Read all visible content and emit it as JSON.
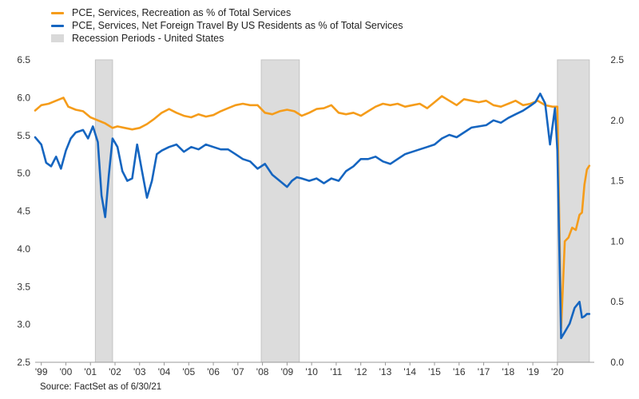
{
  "legend": {
    "items": [
      {
        "label": "PCE, Services, Recreation as % of Total Services",
        "kind": "line",
        "color": "#f59c1a"
      },
      {
        "label": "PCE, Services, Net Foreign Travel By US Residents as % of Total Services",
        "kind": "line",
        "color": "#1565c0"
      },
      {
        "label": "Recession Periods - United States",
        "kind": "box",
        "color": "#d9d9d9"
      }
    ]
  },
  "source": "Source: FactSet as of 6/30/21",
  "chart_data": {
    "type": "line",
    "x_range": [
      1998.75,
      2021.5
    ],
    "y_left": {
      "ylim": [
        2.5,
        6.5
      ],
      "ticks": [
        "2.5",
        "3.0",
        "3.5",
        "4.0",
        "4.5",
        "5.0",
        "5.5",
        "6.0",
        "6.5"
      ]
    },
    "y_right": {
      "ylim": [
        0.0,
        2.5
      ],
      "ticks": [
        "0.0",
        "0.5",
        "1.0",
        "1.5",
        "2.0",
        "2.5"
      ]
    },
    "x_ticks": [
      {
        "label": "'99",
        "x": 1999
      },
      {
        "label": "'00",
        "x": 2000
      },
      {
        "label": "'01",
        "x": 2001
      },
      {
        "label": "'02",
        "x": 2002
      },
      {
        "label": "'03",
        "x": 2003
      },
      {
        "label": "'04",
        "x": 2004
      },
      {
        "label": "'05",
        "x": 2005
      },
      {
        "label": "'06",
        "x": 2006
      },
      {
        "label": "'07",
        "x": 2007
      },
      {
        "label": "'08",
        "x": 2008
      },
      {
        "label": "'09",
        "x": 2009
      },
      {
        "label": "'10",
        "x": 2010
      },
      {
        "label": "'11",
        "x": 2011
      },
      {
        "label": "'12",
        "x": 2012
      },
      {
        "label": "'13",
        "x": 2013
      },
      {
        "label": "'14",
        "x": 2014
      },
      {
        "label": "'15",
        "x": 2015
      },
      {
        "label": "'16",
        "x": 2016
      },
      {
        "label": "'17",
        "x": 2017
      },
      {
        "label": "'18",
        "x": 2018
      },
      {
        "label": "'19",
        "x": 2019
      },
      {
        "label": "'20",
        "x": 2020
      }
    ],
    "recessions": [
      [
        2001.2,
        2001.9
      ],
      [
        2007.95,
        2009.5
      ],
      [
        2020.0,
        2021.3
      ]
    ],
    "series": [
      {
        "axis": "left",
        "color": "#f59c1a",
        "x": [
          1998.75,
          1999.0,
          1999.3,
          1999.6,
          1999.9,
          2000.1,
          2000.4,
          2000.7,
          2001.0,
          2001.3,
          2001.6,
          2001.9,
          2002.1,
          2002.4,
          2002.7,
          2003.0,
          2003.3,
          2003.6,
          2003.9,
          2004.2,
          2004.5,
          2004.8,
          2005.1,
          2005.4,
          2005.7,
          2006.0,
          2006.3,
          2006.6,
          2006.9,
          2007.2,
          2007.5,
          2007.8,
          2008.1,
          2008.4,
          2008.7,
          2009.0,
          2009.3,
          2009.6,
          2009.9,
          2010.2,
          2010.5,
          2010.8,
          2011.1,
          2011.4,
          2011.7,
          2012.0,
          2012.3,
          2012.6,
          2012.9,
          2013.2,
          2013.5,
          2013.8,
          2014.1,
          2014.4,
          2014.7,
          2015.0,
          2015.3,
          2015.6,
          2015.9,
          2016.2,
          2016.5,
          2016.8,
          2017.1,
          2017.4,
          2017.7,
          2018.0,
          2018.3,
          2018.6,
          2018.9,
          2019.2,
          2019.5,
          2019.8,
          2020.0,
          2020.15,
          2020.3,
          2020.45,
          2020.6,
          2020.75,
          2020.9,
          2021.0,
          2021.1,
          2021.2,
          2021.3
        ],
        "y": [
          5.83,
          5.9,
          5.92,
          5.96,
          6.0,
          5.88,
          5.84,
          5.82,
          5.74,
          5.7,
          5.66,
          5.6,
          5.62,
          5.6,
          5.58,
          5.6,
          5.65,
          5.72,
          5.8,
          5.85,
          5.8,
          5.76,
          5.74,
          5.78,
          5.75,
          5.77,
          5.82,
          5.86,
          5.9,
          5.92,
          5.9,
          5.9,
          5.8,
          5.78,
          5.82,
          5.84,
          5.82,
          5.76,
          5.8,
          5.85,
          5.86,
          5.9,
          5.8,
          5.78,
          5.8,
          5.76,
          5.82,
          5.88,
          5.92,
          5.9,
          5.92,
          5.88,
          5.9,
          5.92,
          5.86,
          5.94,
          6.02,
          5.96,
          5.9,
          5.98,
          5.96,
          5.94,
          5.96,
          5.9,
          5.88,
          5.92,
          5.96,
          5.9,
          5.92,
          5.96,
          5.9,
          5.88,
          5.88,
          2.95,
          4.1,
          4.15,
          4.28,
          4.25,
          4.45,
          4.48,
          4.85,
          5.05,
          5.1
        ]
      },
      {
        "axis": "right",
        "color": "#1565c0",
        "x": [
          1998.75,
          1999.0,
          1999.2,
          1999.4,
          1999.6,
          1999.8,
          2000.0,
          2000.2,
          2000.4,
          2000.7,
          2000.9,
          2001.1,
          2001.3,
          2001.45,
          2001.6,
          2001.75,
          2001.9,
          2002.1,
          2002.3,
          2002.5,
          2002.7,
          2002.9,
          2003.1,
          2003.3,
          2003.5,
          2003.7,
          2003.9,
          2004.2,
          2004.5,
          2004.8,
          2005.1,
          2005.4,
          2005.7,
          2006.0,
          2006.3,
          2006.6,
          2006.9,
          2007.2,
          2007.5,
          2007.8,
          2008.1,
          2008.4,
          2008.7,
          2009.0,
          2009.2,
          2009.4,
          2009.6,
          2009.9,
          2010.2,
          2010.5,
          2010.8,
          2011.1,
          2011.4,
          2011.7,
          2012.0,
          2012.3,
          2012.6,
          2012.9,
          2013.2,
          2013.5,
          2013.8,
          2014.1,
          2014.4,
          2014.7,
          2015.0,
          2015.3,
          2015.6,
          2015.9,
          2016.2,
          2016.5,
          2016.8,
          2017.1,
          2017.4,
          2017.7,
          2018.0,
          2018.3,
          2018.6,
          2018.9,
          2019.1,
          2019.3,
          2019.5,
          2019.7,
          2019.9,
          2020.0,
          2020.15,
          2020.3,
          2020.5,
          2020.7,
          2020.9,
          2021.0,
          2021.1,
          2021.2,
          2021.3
        ],
        "y": [
          1.86,
          1.8,
          1.65,
          1.62,
          1.7,
          1.6,
          1.75,
          1.85,
          1.9,
          1.92,
          1.85,
          1.95,
          1.82,
          1.38,
          1.2,
          1.55,
          1.85,
          1.78,
          1.58,
          1.5,
          1.52,
          1.8,
          1.58,
          1.36,
          1.5,
          1.72,
          1.75,
          1.78,
          1.8,
          1.74,
          1.78,
          1.76,
          1.8,
          1.78,
          1.76,
          1.76,
          1.72,
          1.68,
          1.66,
          1.6,
          1.64,
          1.55,
          1.5,
          1.45,
          1.5,
          1.53,
          1.52,
          1.5,
          1.52,
          1.48,
          1.52,
          1.5,
          1.58,
          1.62,
          1.68,
          1.68,
          1.7,
          1.66,
          1.64,
          1.68,
          1.72,
          1.74,
          1.76,
          1.78,
          1.8,
          1.85,
          1.88,
          1.86,
          1.9,
          1.94,
          1.95,
          1.96,
          2.0,
          1.98,
          2.02,
          2.05,
          2.08,
          2.12,
          2.15,
          2.22,
          2.14,
          1.8,
          2.1,
          1.75,
          0.2,
          0.25,
          0.32,
          0.45,
          0.5,
          0.37,
          0.38,
          0.4,
          0.4
        ]
      }
    ]
  }
}
